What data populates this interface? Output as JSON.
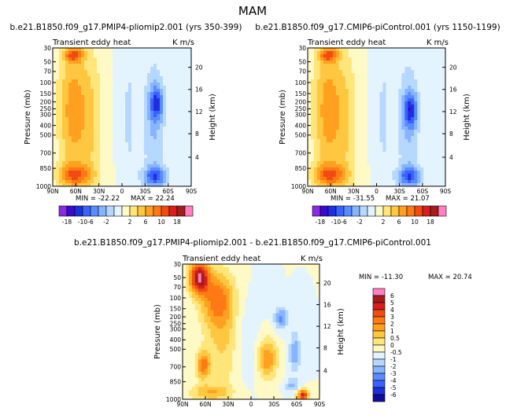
{
  "figure": {
    "season": "MAM"
  },
  "chart_data": [
    {
      "type": "heatmap",
      "id": "panel1",
      "title": "b.e21.B1850.f09_g17.PMIP4-pliomip2.001 (yrs 350-399)",
      "left_label": "Transient eddy heat",
      "right_label": "K m/s",
      "ylabel": "Pressure (mb)",
      "y2label": "Height (km)",
      "x_ticks": [
        "90N",
        "60N",
        "30N",
        "0",
        "30S",
        "60S",
        "90S"
      ],
      "y_ticks": [
        "30",
        "50",
        "70",
        "100",
        "150",
        "200",
        "250",
        "300",
        "400",
        "500",
        "700",
        "850",
        "1000"
      ],
      "y2_ticks": [
        "20",
        "16",
        "12",
        "8",
        "4"
      ],
      "min_label": "MIN = -22.22",
      "max_label": "MAX = 22.24",
      "min": -22.22,
      "max": 22.24,
      "colorbar": {
        "orientation": "horizontal",
        "ticks": [
          "-18",
          "-10",
          "-6",
          "-2",
          "2",
          "6",
          "10",
          "18"
        ]
      }
    },
    {
      "type": "heatmap",
      "id": "panel2",
      "title": "b.e21.B1850.f09_g17.CMIP6-piControl.001 (yrs 1150-1199)",
      "left_label": "Transient eddy heat",
      "right_label": "K m/s",
      "ylabel": "Pressure (mb)",
      "y2label": "Height (km)",
      "x_ticks": [
        "90N",
        "60N",
        "30N",
        "0",
        "30S",
        "60S",
        "90S"
      ],
      "y_ticks": [
        "30",
        "50",
        "70",
        "100",
        "150",
        "200",
        "250",
        "300",
        "400",
        "500",
        "700",
        "850",
        "1000"
      ],
      "y2_ticks": [
        "20",
        "16",
        "12",
        "8",
        "4"
      ],
      "min_label": "MIN = -31.55",
      "max_label": "MAX = 21.07",
      "min": -31.55,
      "max": 21.07,
      "colorbar": {
        "orientation": "horizontal",
        "ticks": [
          "-18",
          "-10",
          "-6",
          "-2",
          "2",
          "6",
          "10",
          "18"
        ]
      }
    },
    {
      "type": "heatmap",
      "id": "panel3",
      "title": "b.e21.B1850.f09_g17.PMIP4-pliomip2.001 - b.e21.B1850.f09_g17.CMIP6-piControl.001",
      "left_label": "Transient eddy heat",
      "right_label": "K m/s",
      "ylabel": "Pressure (mb)",
      "y2label": "Height (km)",
      "x_ticks": [
        "90N",
        "60N",
        "30N",
        "0",
        "30S",
        "60S",
        "90S"
      ],
      "y_ticks": [
        "30",
        "50",
        "70",
        "100",
        "150",
        "200",
        "250",
        "300",
        "400",
        "500",
        "700",
        "850",
        "1000"
      ],
      "y2_ticks": [
        "20",
        "16",
        "12",
        "8",
        "4"
      ],
      "min_label": "MIN = -11.30",
      "max_label": "MAX = 20.74",
      "min": -11.3,
      "max": 20.74,
      "colorbar": {
        "orientation": "vertical",
        "ticks": [
          "6",
          "5",
          "4",
          "3",
          "2",
          "1",
          "0.5",
          "0",
          "-0.5",
          "-1",
          "-2",
          "-3",
          "-4",
          "-5",
          "-6"
        ]
      }
    }
  ],
  "palettes": {
    "full": [
      "#8a2be2",
      "#3a0ad0",
      "#1f2fe0",
      "#3a62ff",
      "#5a8cff",
      "#86b4ff",
      "#b6d8ff",
      "#e4f4ff",
      "#fff9c6",
      "#ffe57a",
      "#ffc640",
      "#ffa020",
      "#ff7a14",
      "#f04c12",
      "#d81e1e",
      "#a51c1c",
      "#ff80c0"
    ],
    "diff": [
      "#8a2be2",
      "#100c9a",
      "#1f2fe0",
      "#3a62ff",
      "#5a8cff",
      "#86b4ff",
      "#b6d8ff",
      "#e4f4ff",
      "#fff9c6",
      "#ffe57a",
      "#ffc640",
      "#ffa020",
      "#ff7a14",
      "#f04c12",
      "#d81e1e",
      "#a51c1c",
      "#ff80c0"
    ]
  }
}
